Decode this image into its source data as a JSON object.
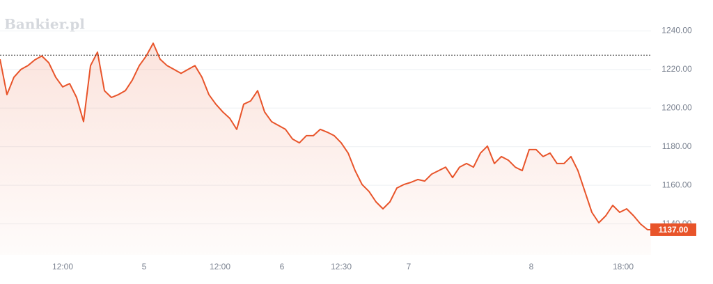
{
  "chart_data": {
    "type": "line",
    "watermark": "Bankier.pl",
    "x": [
      0,
      1,
      2,
      3,
      4,
      5,
      6,
      7,
      8,
      9,
      10,
      11,
      12,
      13,
      14,
      15,
      16,
      17,
      18,
      19,
      20,
      21,
      22,
      23,
      24,
      25,
      26,
      27,
      28,
      29,
      30,
      31,
      32,
      33,
      34,
      35,
      36,
      37,
      38,
      39,
      40,
      41,
      42,
      43,
      44,
      45,
      46,
      47,
      48,
      49,
      50,
      51,
      52,
      53,
      54,
      55,
      56,
      57,
      58,
      59,
      60,
      61,
      62,
      63,
      64,
      65,
      66,
      67,
      68,
      69,
      70,
      71,
      72,
      73,
      74,
      75,
      76,
      77,
      78,
      79,
      80,
      81,
      82,
      83,
      84,
      85,
      86,
      87,
      88,
      89,
      90,
      91,
      92,
      93,
      93.5
    ],
    "series": [
      {
        "color": "#e8542a",
        "values": [
          1225.3,
          1207,
          1216,
          1220,
          1222,
          1225,
          1227,
          1223.5,
          1216,
          1211,
          1212.7,
          1205.5,
          1193,
          1222,
          1229,
          1209,
          1205.5,
          1207,
          1209,
          1214.5,
          1222,
          1227,
          1233.6,
          1225.3,
          1222,
          1220,
          1218,
          1220,
          1222,
          1216,
          1207,
          1202,
          1198,
          1194.7,
          1189,
          1202,
          1203.7,
          1209,
          1198,
          1193,
          1191,
          1189,
          1184,
          1182,
          1185.7,
          1185.7,
          1189,
          1187.5,
          1185.7,
          1182,
          1176.7,
          1167.6,
          1160.4,
          1156.8,
          1151.4,
          1147.8,
          1151.4,
          1158.6,
          1160.4,
          1161.5,
          1163,
          1162.2,
          1165.8,
          1167.6,
          1169.4,
          1164,
          1169.4,
          1171.3,
          1169.4,
          1176.7,
          1180.3,
          1171.3,
          1174.9,
          1173,
          1169.4,
          1167.6,
          1178.5,
          1178.5,
          1174.9,
          1176.7,
          1171.3,
          1171.3,
          1174.9,
          1167.6,
          1156.8,
          1146,
          1140.6,
          1144.2,
          1149.6,
          1146,
          1147.8,
          1144.2,
          1139.9,
          1137,
          1137
        ]
      }
    ],
    "xlim": [
      0,
      93.5
    ],
    "xticks": [
      {
        "value": 9,
        "label": "12:00"
      },
      {
        "value": 20.7,
        "label": "5"
      },
      {
        "value": 31.6,
        "label": "12:00"
      },
      {
        "value": 40.5,
        "label": "6"
      },
      {
        "value": 49,
        "label": "12:30"
      },
      {
        "value": 58.7,
        "label": "7"
      },
      {
        "value": 76.3,
        "label": "8"
      },
      {
        "value": 89.5,
        "label": "18:00"
      }
    ],
    "ylim": [
      1124,
      1256
    ],
    "yticks": [
      {
        "value": 1140,
        "label": "1140.00"
      },
      {
        "value": 1160,
        "label": "1160.00"
      },
      {
        "value": 1180,
        "label": "1180.00"
      },
      {
        "value": 1200,
        "label": "1200.00"
      },
      {
        "value": 1220,
        "label": "1220.00"
      },
      {
        "value": 1240,
        "label": "1240.00"
      }
    ],
    "reference_line": 1227.4,
    "current_price": {
      "value": 1137,
      "label": "1137.00"
    },
    "grid": true
  }
}
